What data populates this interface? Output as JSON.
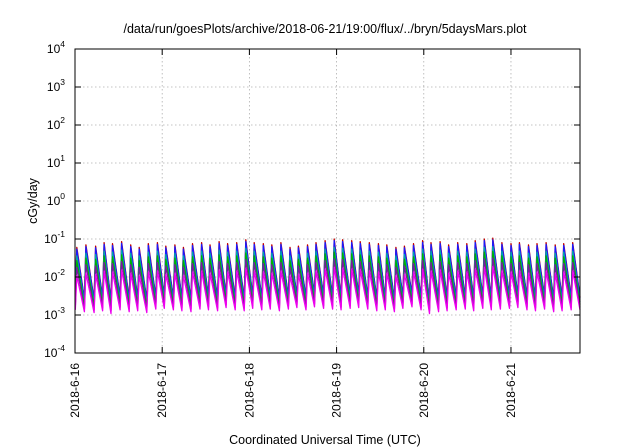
{
  "chart_data": {
    "type": "line",
    "title": "/data/run/goesPlots/archive/2018-06-21/19:00/flux/../bryn/5daysMars.plot",
    "xlabel": "Coordinated Universal Time (UTC)",
    "ylabel": "cGy/day",
    "y_scale": "log",
    "ylim": [
      0.0001,
      10000
    ],
    "xlim_days": [
      "2018-06-16T00:00",
      "2018-06-21T19:00"
    ],
    "x_ticks": [
      "2018-6-16",
      "2018-6-17",
      "2018-6-18",
      "2018-6-19",
      "2018-6-20",
      "2018-6-21"
    ],
    "y_ticks": [
      {
        "base": "10",
        "exp": "-4"
      },
      {
        "base": "10",
        "exp": "-3"
      },
      {
        "base": "10",
        "exp": "-2"
      },
      {
        "base": "10",
        "exp": "-1"
      },
      {
        "base": "10",
        "exp": "0"
      },
      {
        "base": "10",
        "exp": "1"
      },
      {
        "base": "10",
        "exp": "2"
      },
      {
        "base": "10",
        "exp": "3"
      },
      {
        "base": "10",
        "exp": "4"
      }
    ],
    "grid": true,
    "legend": "none",
    "peak_times": [
      "2018-06-16T00:30",
      "2018-06-16T03:00",
      "2018-06-16T05:40",
      "2018-06-16T08:00",
      "2018-06-16T10:20",
      "2018-06-16T12:50",
      "2018-06-16T15:20",
      "2018-06-16T17:40",
      "2018-06-16T20:10",
      "2018-06-16T22:40",
      "2018-06-17T01:00",
      "2018-06-17T03:30",
      "2018-06-17T05:50",
      "2018-06-17T08:20",
      "2018-06-17T10:50",
      "2018-06-17T13:10",
      "2018-06-17T15:40",
      "2018-06-17T18:00",
      "2018-06-17T20:30",
      "2018-06-17T23:00",
      "2018-06-18T01:20",
      "2018-06-18T03:50",
      "2018-06-18T06:10",
      "2018-06-18T08:40",
      "2018-06-18T11:10",
      "2018-06-18T13:30",
      "2018-06-18T16:00",
      "2018-06-18T18:20",
      "2018-06-18T20:50",
      "2018-06-18T23:20",
      "2018-06-19T01:40",
      "2018-06-19T04:10",
      "2018-06-19T06:30",
      "2018-06-19T09:00",
      "2018-06-19T11:30",
      "2018-06-19T13:50",
      "2018-06-19T16:20",
      "2018-06-19T18:40",
      "2018-06-19T21:10",
      "2018-06-19T23:40",
      "2018-06-20T02:00",
      "2018-06-20T04:30",
      "2018-06-20T06:50",
      "2018-06-20T09:20",
      "2018-06-20T11:50",
      "2018-06-20T14:10",
      "2018-06-20T16:40",
      "2018-06-20T19:00",
      "2018-06-20T21:30",
      "2018-06-21T00:00",
      "2018-06-21T02:20",
      "2018-06-21T04:50",
      "2018-06-21T07:10",
      "2018-06-21T09:40",
      "2018-06-21T12:10",
      "2018-06-21T14:30",
      "2018-06-21T17:00"
    ],
    "peak_max_values": [
      0.06,
      0.07,
      0.065,
      0.08,
      0.075,
      0.085,
      0.07,
      0.06,
      0.075,
      0.08,
      0.065,
      0.07,
      0.06,
      0.075,
      0.08,
      0.07,
      0.085,
      0.075,
      0.08,
      0.095,
      0.08,
      0.075,
      0.07,
      0.08,
      0.06,
      0.065,
      0.07,
      0.08,
      0.09,
      0.1,
      0.095,
      0.09,
      0.085,
      0.08,
      0.075,
      0.07,
      0.06,
      0.065,
      0.075,
      0.09,
      0.08,
      0.085,
      0.07,
      0.08,
      0.075,
      0.09,
      0.1,
      0.105,
      0.08,
      0.075,
      0.08,
      0.07,
      0.075,
      0.08,
      0.07,
      0.075,
      0.08
    ],
    "trough_min_values": [
      0.002,
      0.0018,
      0.0017,
      0.0019,
      0.0016,
      0.002,
      0.0018,
      0.0019,
      0.0017,
      0.0021,
      0.0022,
      0.002,
      0.0019,
      0.0018,
      0.0021,
      0.002,
      0.0019,
      0.0023,
      0.002,
      0.0019,
      0.0022,
      0.002,
      0.0021,
      0.0019,
      0.0021,
      0.0023,
      0.002,
      0.0024,
      0.0022,
      0.0021,
      0.002,
      0.0022,
      0.0023,
      0.0021,
      0.0019,
      0.002,
      0.0018,
      0.0022,
      0.0024,
      0.002,
      0.0016,
      0.0018,
      0.0019,
      0.002,
      0.0021,
      0.0019,
      0.0022,
      0.002,
      0.0021,
      0.0022,
      0.0023,
      0.002,
      0.0019,
      0.0021,
      0.0018,
      0.0019,
      0.002
    ],
    "series": [
      {
        "color": "#c00000",
        "factor": 1.0
      },
      {
        "color": "#1a1aff",
        "factor": 0.9
      },
      {
        "color": "#00aaaa",
        "factor": 0.6
      },
      {
        "color": "#00b000",
        "factor": 0.45
      },
      {
        "color": "#7a1aa0",
        "factor": 0.3
      },
      {
        "color": "#ee00ee",
        "factor": 0.18
      }
    ]
  }
}
